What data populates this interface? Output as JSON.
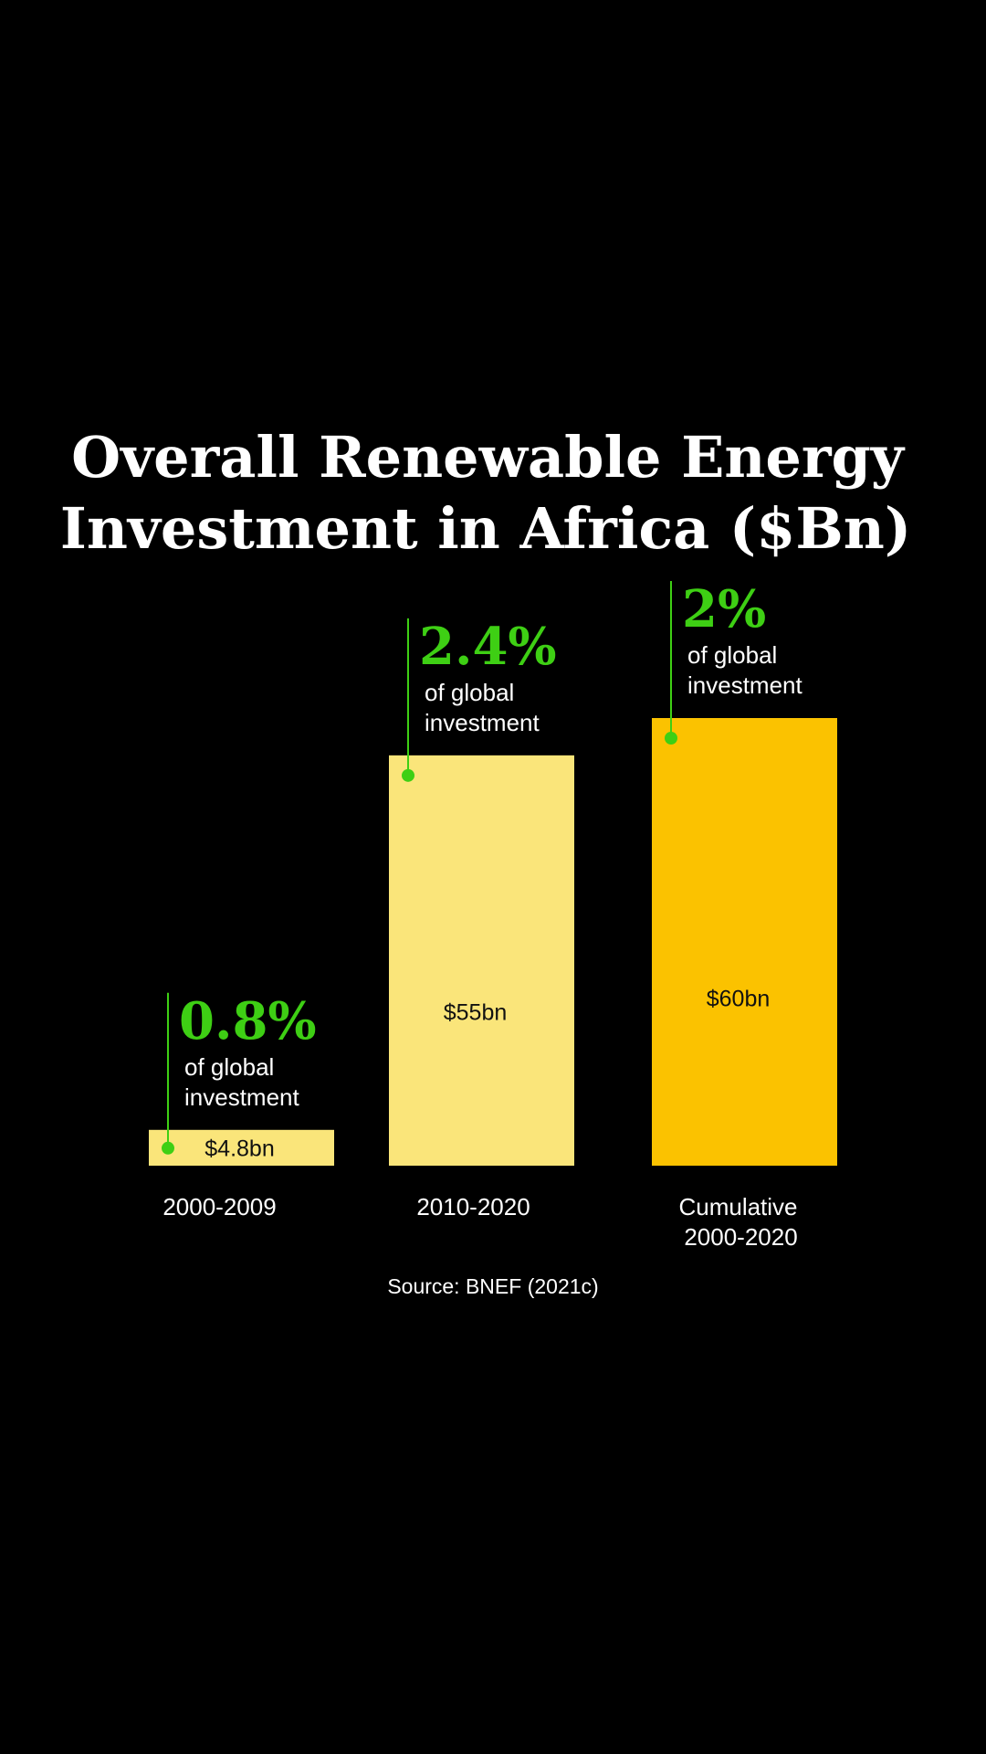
{
  "chart_data": {
    "type": "bar",
    "title": [
      "Overall Renewable Energy",
      "Investment in Africa ($Bn)"
    ],
    "categories": [
      [
        "2000-2009"
      ],
      [
        "2010-2020"
      ],
      [
        "Cumulative",
        "2000-2020"
      ]
    ],
    "values": [
      4.8,
      55,
      60
    ],
    "value_labels": [
      "$4.8bn",
      "$55bn",
      "$60bn"
    ],
    "share_of_global": [
      "0.8%",
      "2.4%",
      "2%"
    ],
    "share_note": [
      "of global",
      "investment"
    ],
    "bar_colors": [
      "#fae57a",
      "#fae57a",
      "#fbc200"
    ],
    "accent_color": "#3ecf14",
    "ylim": [
      0,
      60
    ],
    "grid": false,
    "legend": "none",
    "source": "Source: BNEF (2021c)"
  }
}
